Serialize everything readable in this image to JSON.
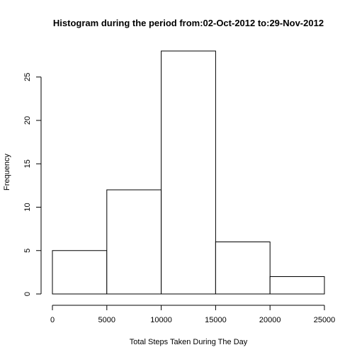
{
  "chart_data": {
    "type": "bar",
    "subtype": "histogram",
    "title": "Histogram during the period from:02-Oct-2012 to:29-Nov-2012",
    "xlabel": "Total Steps Taken During The Day",
    "ylabel": "Frequency",
    "bins": [
      {
        "start": 0,
        "end": 5000,
        "value": 5
      },
      {
        "start": 5000,
        "end": 10000,
        "value": 12
      },
      {
        "start": 10000,
        "end": 15000,
        "value": 28
      },
      {
        "start": 15000,
        "end": 20000,
        "value": 6
      },
      {
        "start": 20000,
        "end": 25000,
        "value": 2
      }
    ],
    "xlim": [
      0,
      25000
    ],
    "ylim": [
      0,
      28
    ],
    "x_ticks": [
      0,
      5000,
      10000,
      15000,
      20000,
      25000
    ],
    "x_tick_labels": [
      "0",
      "5000",
      "10000",
      "15000",
      "20000",
      "25000"
    ],
    "y_ticks": [
      0,
      5,
      10,
      15,
      20,
      25
    ],
    "y_tick_labels": [
      "0",
      "5",
      "10",
      "15",
      "20",
      "25"
    ],
    "grid": false,
    "legend": "none",
    "bar_fill": "#ffffff",
    "bar_stroke": "#000000"
  }
}
